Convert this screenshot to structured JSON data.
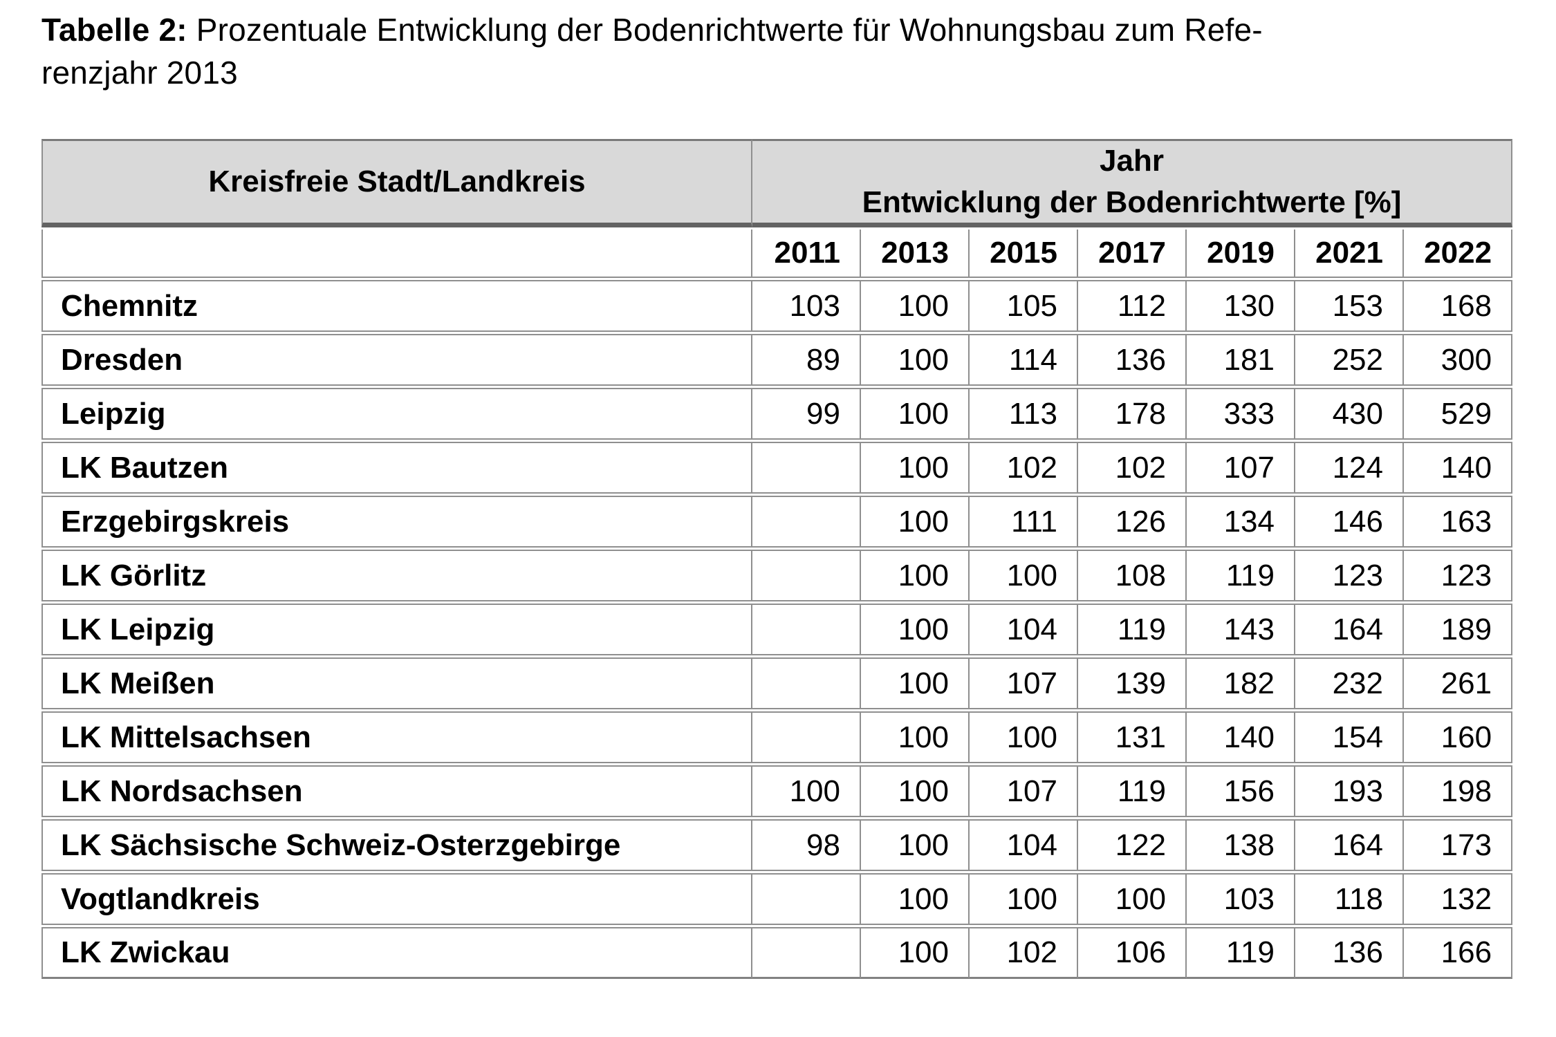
{
  "title": {
    "label": "Tabelle 2:",
    "line1": "Prozentuale Entwicklung der Bodenrichtwerte für Wohnungsbau zum Refe-",
    "line2": "renzjahr 2013"
  },
  "table": {
    "col1_header": "Kreisfreie Stadt/Landkreis",
    "group_header_line1": "Jahr",
    "group_header_line2": "Entwicklung der Bodenrichtwerte [%]",
    "years": [
      "2011",
      "2013",
      "2015",
      "2017",
      "2019",
      "2021",
      "2022"
    ],
    "rows": [
      {
        "name": "Chemnitz",
        "values": [
          "103",
          "100",
          "105",
          "112",
          "130",
          "153",
          "168"
        ]
      },
      {
        "name": "Dresden",
        "values": [
          "89",
          "100",
          "114",
          "136",
          "181",
          "252",
          "300"
        ]
      },
      {
        "name": "Leipzig",
        "values": [
          "99",
          "100",
          "113",
          "178",
          "333",
          "430",
          "529"
        ]
      },
      {
        "name": "LK Bautzen",
        "values": [
          "",
          "100",
          "102",
          "102",
          "107",
          "124",
          "140"
        ]
      },
      {
        "name": "Erzgebirgskreis",
        "values": [
          "",
          "100",
          "111",
          "126",
          "134",
          "146",
          "163"
        ]
      },
      {
        "name": "LK Görlitz",
        "values": [
          "",
          "100",
          "100",
          "108",
          "119",
          "123",
          "123"
        ]
      },
      {
        "name": "LK Leipzig",
        "values": [
          "",
          "100",
          "104",
          "119",
          "143",
          "164",
          "189"
        ]
      },
      {
        "name": "LK Meißen",
        "values": [
          "",
          "100",
          "107",
          "139",
          "182",
          "232",
          "261"
        ]
      },
      {
        "name": "LK Mittelsachsen",
        "values": [
          "",
          "100",
          "100",
          "131",
          "140",
          "154",
          "160"
        ]
      },
      {
        "name": "LK Nordsachsen",
        "values": [
          "100",
          "100",
          "107",
          "119",
          "156",
          "193",
          "198"
        ]
      },
      {
        "name": "LK Sächsische Schweiz-Osterzgebirge",
        "values": [
          "98",
          "100",
          "104",
          "122",
          "138",
          "164",
          "173"
        ]
      },
      {
        "name": "Vogtlandkreis",
        "values": [
          "",
          "100",
          "100",
          "100",
          "103",
          "118",
          "132"
        ]
      },
      {
        "name": "LK Zwickau",
        "values": [
          "",
          "100",
          "102",
          "106",
          "119",
          "136",
          "166"
        ]
      }
    ]
  },
  "colors": {
    "header_background": "#d9d9d9",
    "grid_border": "#8f8f8f",
    "header_thick_divider": "#636363",
    "text": "#000000",
    "page_background": "#ffffff"
  }
}
